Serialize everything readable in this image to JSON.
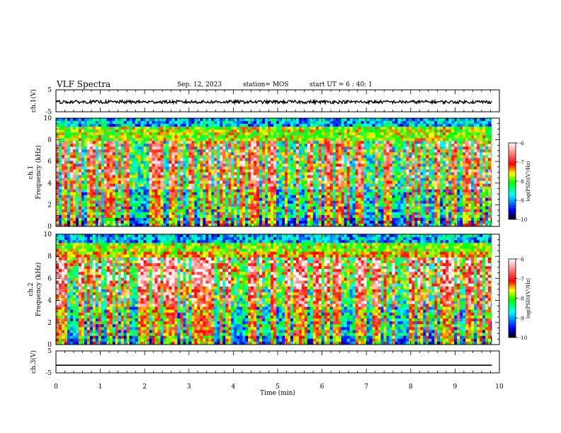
{
  "header": {
    "title": "VLF Spectra",
    "date": "Sep. 12, 2023",
    "station": "station= MOS",
    "start": "start  UT =   6 : 40: 1"
  },
  "chart_data": [
    {
      "type": "line",
      "panel": "ch1-waveform",
      "ylabel": "ch.1(V)",
      "ylim": [
        -5,
        5
      ],
      "yticks": [
        "5",
        "-5"
      ],
      "x": [
        0,
        10
      ],
      "y": [
        -0.5,
        -0.5
      ],
      "note_color": "#000000"
    },
    {
      "type": "heatmap",
      "panel": "ch1-spectrogram",
      "ylabel": [
        "ch.1",
        "Frequency (kHz)"
      ],
      "ylim": [
        0,
        10
      ],
      "yticks": [
        "0",
        "2",
        "4",
        "6",
        "8",
        "10"
      ],
      "xlim": [
        0,
        10
      ],
      "colorbar": {
        "label": "log(PSD)(V²/Hz)",
        "range": [
          -10,
          -6
        ],
        "ticks": [
          "-6",
          "-7",
          "-8",
          "-9",
          "-10"
        ]
      }
    },
    {
      "type": "heatmap",
      "panel": "ch2-spectrogram",
      "ylabel": [
        "ch.2",
        "Frequency (kHz)"
      ],
      "ylim": [
        0,
        10
      ],
      "yticks": [
        "0",
        "2",
        "4",
        "6",
        "8",
        "10"
      ],
      "xlim": [
        0,
        10
      ],
      "colorbar": {
        "label": "log(PSD)(V²/Hz)",
        "range": [
          -10,
          -6
        ],
        "ticks": [
          "-6",
          "-7",
          "-8",
          "-9",
          "-10"
        ]
      }
    },
    {
      "type": "line",
      "panel": "ch3-waveform",
      "ylabel": "ch.3(V)",
      "ylim": [
        -5,
        5
      ],
      "yticks": [
        "5",
        "-5"
      ],
      "x": [
        0,
        10
      ],
      "y": [
        -1.5,
        -1.5
      ]
    }
  ],
  "xaxis": {
    "label": "Time  (min)",
    "range": [
      0,
      10
    ],
    "ticks": [
      "0",
      "1",
      "2",
      "3",
      "4",
      "5",
      "6",
      "7",
      "8",
      "9",
      "10"
    ]
  },
  "colors": {
    "scale": [
      "#000000",
      "#0000ff",
      "#00ffff",
      "#00ff00",
      "#ffff00",
      "#ff0000",
      "#ffffff"
    ]
  }
}
